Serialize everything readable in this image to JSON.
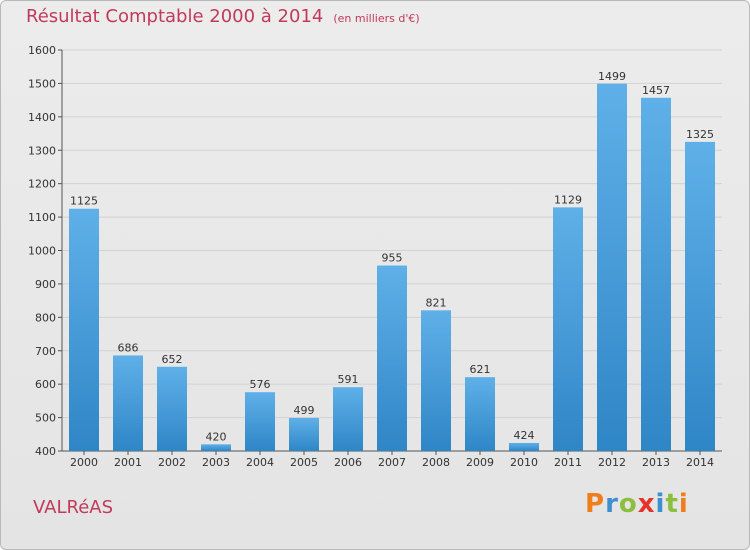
{
  "title": "Résultat Comptable 2000 à 2014",
  "subtitle": "(en milliers d'€)",
  "town": "VALRéAS",
  "logo": {
    "letters": [
      "P",
      "r",
      "o",
      "x",
      "i",
      "t",
      "i"
    ],
    "colors": [
      "#ef7f1a",
      "#3e8fcf",
      "#8cbf3f",
      "#e6332a",
      "#3e8fcf",
      "#8cbf3f",
      "#ef7f1a"
    ]
  },
  "colors": {
    "bar_light": "#5fb0e8",
    "bar_dark": "#2f86c6",
    "title": "#c23a5b"
  },
  "chart_data": {
    "type": "bar",
    "title": "Résultat Comptable 2000 à 2014",
    "subtitle": "(en milliers d'€)",
    "xlabel": "",
    "ylabel": "",
    "categories": [
      "2000",
      "2001",
      "2002",
      "2003",
      "2004",
      "2005",
      "2006",
      "2007",
      "2008",
      "2009",
      "2010",
      "2011",
      "2012",
      "2013",
      "2014"
    ],
    "values": [
      1125,
      686,
      652,
      420,
      576,
      499,
      591,
      955,
      821,
      621,
      424,
      1129,
      1499,
      1457,
      1325
    ],
    "ylim": [
      400,
      1600
    ],
    "yticks": [
      400,
      500,
      600,
      700,
      800,
      900,
      1000,
      1100,
      1200,
      1300,
      1400,
      1500,
      1600
    ],
    "grid": true
  }
}
